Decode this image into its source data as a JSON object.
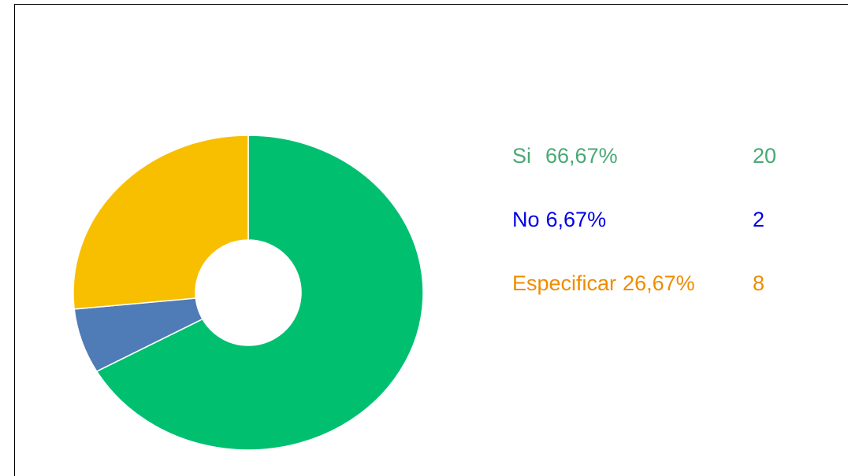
{
  "chart_data": {
    "type": "donut",
    "categories": [
      "Si",
      "No",
      "Especificar"
    ],
    "values": [
      20,
      2,
      8
    ],
    "percentages": [
      66.67,
      6.67,
      26.67
    ],
    "percentage_labels": [
      "66,67%",
      "6,67%",
      "26,67%"
    ],
    "colors": [
      "#00c070",
      "#4f7bb6",
      "#f8bf00"
    ],
    "label_colors": [
      "#4aa874",
      "#0000e6",
      "#ef8c00"
    ]
  }
}
